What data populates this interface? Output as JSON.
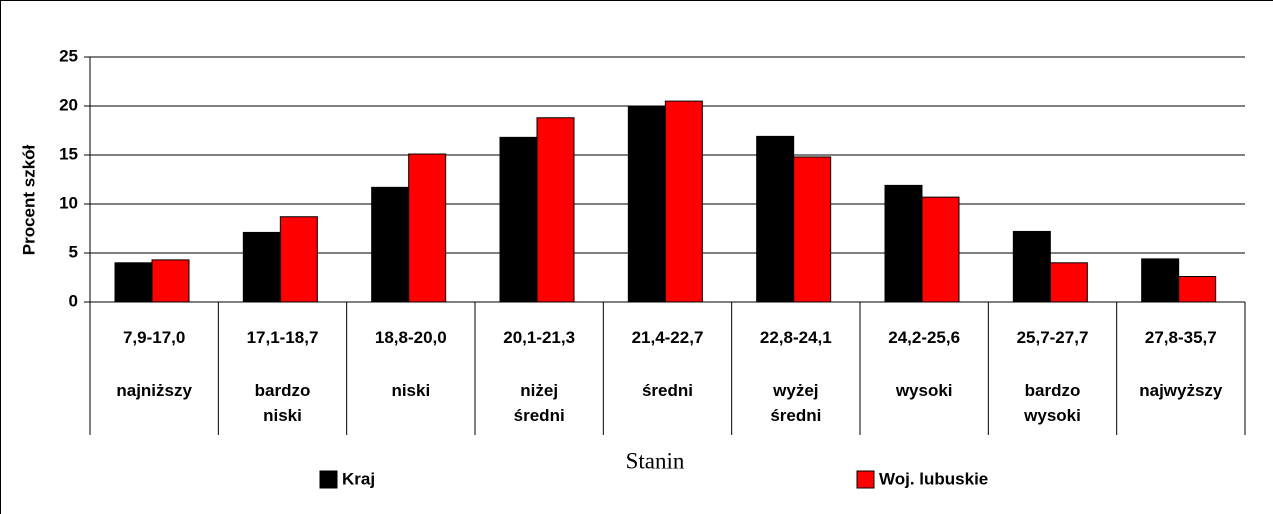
{
  "chart_data": {
    "type": "bar",
    "y_label": "Procent szkół",
    "x_label": "Stanin",
    "categories": [
      "7,9-17,0",
      "17,1-18,7",
      "18,8-20,0",
      "20,1-21,3",
      "21,4-22,7",
      "22,8-24,1",
      "24,2-25,6",
      "25,7-27,7",
      "27,8-35,7"
    ],
    "category_names": [
      "najniższy",
      "bardzo niski",
      "niski",
      "niżej średni",
      "średni",
      "wyżej średni",
      "wysoki",
      "bardzo wysoki",
      "najwyższy"
    ],
    "series": [
      {
        "name": "Kraj",
        "color": "#000000",
        "values": [
          4.0,
          7.1,
          11.7,
          16.8,
          20.0,
          16.9,
          11.9,
          7.2,
          4.4
        ]
      },
      {
        "name": "Woj. lubuskie",
        "color": "#ff0000",
        "values": [
          4.3,
          8.7,
          15.1,
          18.8,
          20.5,
          14.8,
          10.7,
          4.0,
          2.6
        ]
      }
    ],
    "ylim": [
      0,
      25
    ],
    "yticks": [
      0,
      5,
      10,
      15,
      20,
      25
    ],
    "grid": true,
    "legend": "bottom"
  }
}
